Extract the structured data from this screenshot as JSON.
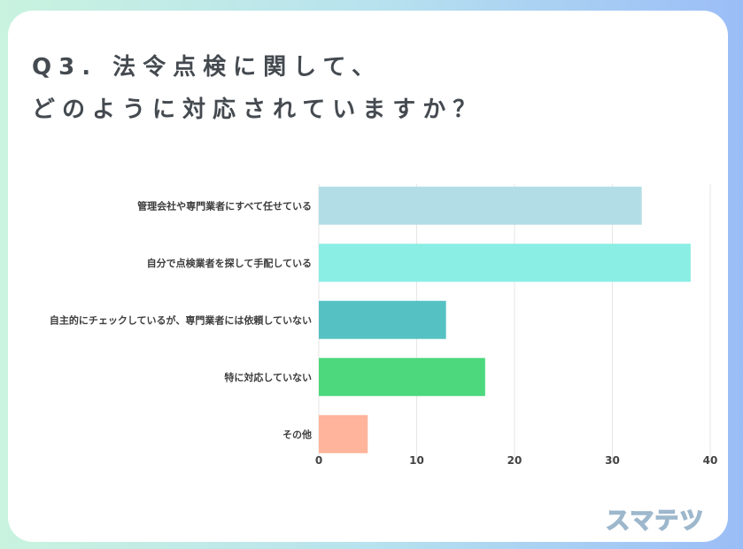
{
  "title_lines": [
    "Q3. 法令点検に関して、",
    "どのように対応されていますか？"
  ],
  "logo_text": "スマテツ",
  "chart_data": {
    "type": "bar",
    "orientation": "horizontal",
    "categories": [
      "管理会社や専門業者にすべて任せている",
      "自分で点検業者を探して手配している",
      "自主的にチェックしているが、専門業者には依頼していない",
      "特に対応していない",
      "その他"
    ],
    "values": [
      33,
      38,
      13,
      17,
      5
    ],
    "colors": [
      "#b3dde6",
      "#8aeee4",
      "#55c1c3",
      "#4dd87e",
      "#ffb49b"
    ],
    "xlim": [
      0,
      40
    ],
    "xticks": [
      0,
      10,
      20,
      30,
      40
    ],
    "grid": true,
    "legend": "none"
  }
}
